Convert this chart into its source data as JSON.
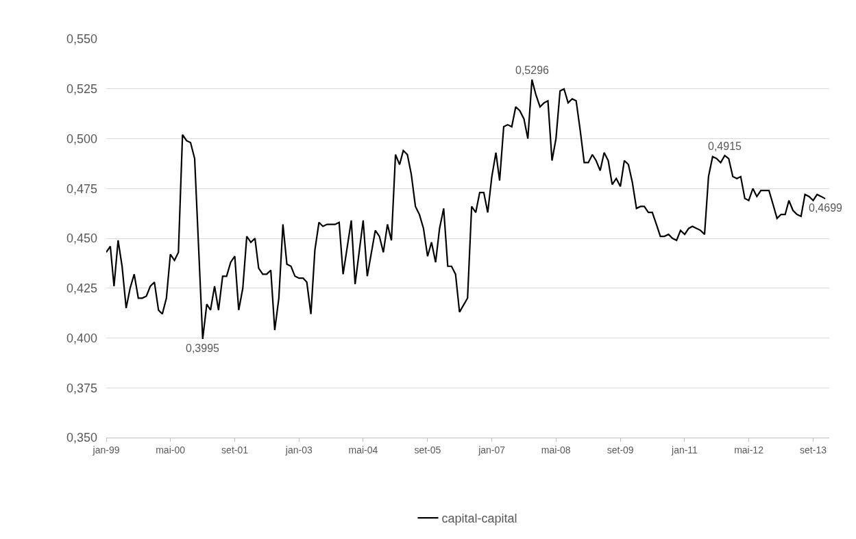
{
  "chart_data": {
    "type": "line",
    "x": [
      "1999-01",
      "1999-02",
      "1999-03",
      "1999-04",
      "1999-05",
      "1999-06",
      "1999-07",
      "1999-08",
      "1999-09",
      "1999-10",
      "1999-11",
      "1999-12",
      "2000-01",
      "2000-02",
      "2000-03",
      "2000-04",
      "2000-05",
      "2000-06",
      "2000-07",
      "2000-08",
      "2000-09",
      "2000-10",
      "2000-11",
      "2001-01",
      "2001-02",
      "2001-03",
      "2001-04",
      "2001-05",
      "2001-06",
      "2001-07",
      "2001-08",
      "2001-09",
      "2001-10",
      "2001-11",
      "2001-12",
      "2002-01",
      "2002-02",
      "2002-03",
      "2002-04",
      "2002-05",
      "2002-06",
      "2002-07",
      "2002-08",
      "2002-09",
      "2002-10",
      "2002-11",
      "2002-12",
      "2003-01",
      "2003-02",
      "2003-03",
      "2003-04",
      "2003-05",
      "2003-06",
      "2003-07",
      "2003-08",
      "2003-09",
      "2003-10",
      "2003-11",
      "2003-12",
      "2004-02",
      "2004-03",
      "2004-05",
      "2004-06",
      "2004-08",
      "2004-09",
      "2004-10",
      "2004-11",
      "2004-12",
      "2005-01",
      "2005-02",
      "2005-03",
      "2005-04",
      "2005-05",
      "2005-06",
      "2005-07",
      "2005-08",
      "2005-09",
      "2005-10",
      "2005-11",
      "2005-12",
      "2006-01",
      "2006-02",
      "2006-03",
      "2006-04",
      "2006-05",
      "2006-07",
      "2006-08",
      "2006-09",
      "2006-10",
      "2006-11",
      "2006-12",
      "2007-01",
      "2007-02",
      "2007-03",
      "2007-04",
      "2007-05",
      "2007-06",
      "2007-07",
      "2007-08",
      "2007-09",
      "2007-10",
      "2007-11",
      "2007-12",
      "2008-01",
      "2008-02",
      "2008-03",
      "2008-04",
      "2008-05",
      "2008-06",
      "2008-07",
      "2008-08",
      "2008-09",
      "2008-10",
      "2008-11",
      "2008-12",
      "2009-01",
      "2009-02",
      "2009-03",
      "2009-04",
      "2009-05",
      "2009-06",
      "2009-07",
      "2009-08",
      "2009-09",
      "2009-10",
      "2009-11",
      "2009-12",
      "2010-01",
      "2010-02",
      "2010-03",
      "2010-04",
      "2010-05",
      "2010-06",
      "2010-07",
      "2010-08",
      "2010-09",
      "2010-10",
      "2010-11",
      "2010-12",
      "2011-01",
      "2011-02",
      "2011-03",
      "2011-04",
      "2011-05",
      "2011-06",
      "2011-07",
      "2011-08",
      "2011-09",
      "2011-10",
      "2011-11",
      "2011-12",
      "2012-01",
      "2012-02",
      "2012-03",
      "2012-04",
      "2012-05",
      "2012-06",
      "2012-07",
      "2012-08",
      "2012-09",
      "2012-10",
      "2012-11",
      "2012-12",
      "2013-01",
      "2013-02",
      "2013-03",
      "2013-04",
      "2013-05",
      "2013-06",
      "2013-07",
      "2013-08",
      "2013-09",
      "2013-10",
      "2013-11",
      "2013-12"
    ],
    "series": [
      {
        "name": "capital-capital",
        "color": "#000000",
        "values": [
          0.443,
          0.446,
          0.426,
          0.449,
          0.436,
          0.415,
          0.425,
          0.432,
          0.42,
          0.42,
          0.421,
          0.426,
          0.428,
          0.414,
          0.412,
          0.42,
          0.442,
          0.439,
          0.443,
          0.502,
          0.499,
          0.498,
          0.49,
          0.3995,
          0.417,
          0.414,
          0.426,
          0.414,
          0.431,
          0.431,
          0.438,
          0.441,
          0.414,
          0.425,
          0.451,
          0.448,
          0.45,
          0.435,
          0.432,
          0.432,
          0.434,
          0.404,
          0.42,
          0.457,
          0.437,
          0.436,
          0.431,
          0.43,
          0.43,
          0.428,
          0.412,
          0.444,
          0.458,
          0.456,
          0.457,
          0.457,
          0.457,
          0.458,
          0.432,
          0.459,
          0.427,
          0.459,
          0.431,
          0.454,
          0.451,
          0.443,
          0.457,
          0.449,
          0.492,
          0.487,
          0.494,
          0.492,
          0.482,
          0.466,
          0.462,
          0.455,
          0.441,
          0.448,
          0.438,
          0.455,
          0.465,
          0.436,
          0.436,
          0.432,
          0.413,
          0.42,
          0.466,
          0.463,
          0.473,
          0.473,
          0.463,
          0.481,
          0.493,
          0.479,
          0.506,
          0.507,
          0.506,
          0.516,
          0.514,
          0.51,
          0.5,
          0.5296,
          0.522,
          0.516,
          0.518,
          0.519,
          0.489,
          0.5,
          0.524,
          0.525,
          0.518,
          0.52,
          0.519,
          0.504,
          0.488,
          0.488,
          0.492,
          0.489,
          0.484,
          0.493,
          0.489,
          0.477,
          0.48,
          0.476,
          0.489,
          0.487,
          0.478,
          0.465,
          0.466,
          0.466,
          0.463,
          0.463,
          0.457,
          0.451,
          0.451,
          0.452,
          0.45,
          0.449,
          0.454,
          0.452,
          0.455,
          0.456,
          0.455,
          0.454,
          0.452,
          0.481,
          0.491,
          0.49,
          0.488,
          0.4915,
          0.49,
          0.481,
          0.48,
          0.481,
          0.47,
          0.469,
          0.475,
          0.471,
          0.474,
          0.474,
          0.474,
          0.467,
          0.46,
          0.462,
          0.462,
          0.469,
          0.464,
          0.462,
          0.461,
          0.472,
          0.471,
          0.469,
          0.472,
          0.471,
          0.4699
        ]
      }
    ],
    "xlim": [
      "1999-01",
      "2014-01"
    ],
    "xticks": [
      {
        "value": "1999-01",
        "label": "jan-99"
      },
      {
        "value": "2000-05",
        "label": "mai-00"
      },
      {
        "value": "2001-09",
        "label": "set-01"
      },
      {
        "value": "2003-01",
        "label": "jan-03"
      },
      {
        "value": "2004-05",
        "label": "mai-04"
      },
      {
        "value": "2005-09",
        "label": "set-05"
      },
      {
        "value": "2007-01",
        "label": "jan-07"
      },
      {
        "value": "2008-05",
        "label": "mai-08"
      },
      {
        "value": "2009-09",
        "label": "set-09"
      },
      {
        "value": "2011-01",
        "label": "jan-11"
      },
      {
        "value": "2012-05",
        "label": "mai-12"
      },
      {
        "value": "2013-09",
        "label": "set-13"
      }
    ],
    "ylim": [
      0.35,
      0.55
    ],
    "yticks": [
      {
        "value": 0.35,
        "label": "0,350"
      },
      {
        "value": 0.375,
        "label": "0,375"
      },
      {
        "value": 0.4,
        "label": "0,400"
      },
      {
        "value": 0.425,
        "label": "0,425"
      },
      {
        "value": 0.45,
        "label": "0,450"
      },
      {
        "value": 0.475,
        "label": "0,475"
      },
      {
        "value": 0.5,
        "label": "0,500"
      },
      {
        "value": 0.525,
        "label": "0,525"
      },
      {
        "value": 0.55,
        "label": "0,550"
      }
    ],
    "grid": "y",
    "legend": "bottom",
    "annotations": [
      {
        "text": "0,3995",
        "x": "2001-01",
        "y": 0.3995
      },
      {
        "text": "0,5296",
        "x": "2007-11",
        "y": 0.5296
      },
      {
        "text": "0,4915",
        "x": "2011-11",
        "y": 0.4915
      },
      {
        "text": "0,4699",
        "x": "2013-12",
        "y": 0.4699
      }
    ]
  }
}
